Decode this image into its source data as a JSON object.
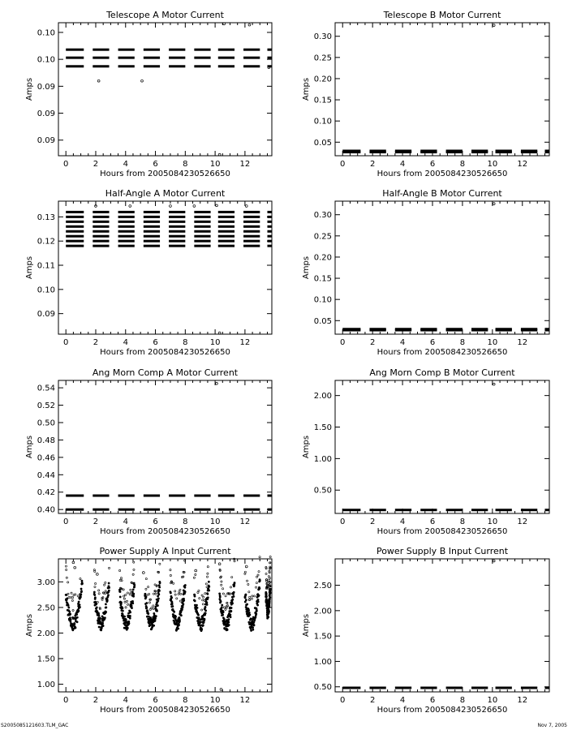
{
  "footer": {
    "left": "S2005085121603.TLM_GAC",
    "right": "Nov 7, 2005"
  },
  "chart_data": [
    {
      "type": "scatter",
      "title": "Telescope A Motor Current",
      "xlabel": "Hours from 2005084230526650",
      "ylabel": "Amps",
      "xlim": [
        -0.5,
        13.8
      ],
      "ylim": [
        0.0821,
        0.1068
      ],
      "xticks": [
        0,
        2,
        4,
        6,
        8,
        10,
        12
      ],
      "yticks": [
        0.085,
        0.09,
        0.095,
        0.1,
        0.105
      ],
      "ytick_labels": [
        "0.09",
        "0.09",
        "0.09",
        "0.10",
        "0.10"
      ],
      "pattern": "bands",
      "levels": [
        0.0987,
        0.1003,
        0.1018
      ],
      "outliers": [
        [
          2.2,
          0.096
        ],
        [
          5.1,
          0.096
        ],
        [
          10.3,
          0.0823
        ],
        [
          10.6,
          0.1066
        ],
        [
          12.3,
          0.1064
        ],
        [
          13.6,
          0.0985
        ]
      ]
    },
    {
      "type": "scatter",
      "title": "Telescope B Motor Current",
      "xlabel": "Hours from 2005084230526650",
      "ylabel": "Amps",
      "xlim": [
        -0.5,
        13.8
      ],
      "ylim": [
        0.018,
        0.332
      ],
      "xticks": [
        0,
        2,
        4,
        6,
        8,
        10,
        12
      ],
      "yticks": [
        0.05,
        0.1,
        0.15,
        0.2,
        0.25,
        0.3
      ],
      "ytick_labels": [
        "0.05",
        "0.10",
        "0.15",
        "0.20",
        "0.25",
        "0.30"
      ],
      "pattern": "bands",
      "levels": [
        0.0265,
        0.0295
      ],
      "outliers": [
        [
          10.1,
          0.326
        ]
      ]
    },
    {
      "type": "scatter",
      "title": "Half-Angle A Motor Current",
      "xlabel": "Hours from 2005084230526650",
      "ylabel": "Amps",
      "xlim": [
        -0.5,
        13.8
      ],
      "ylim": [
        0.0815,
        0.1365
      ],
      "xticks": [
        0,
        2,
        4,
        6,
        8,
        10,
        12
      ],
      "yticks": [
        0.09,
        0.1,
        0.11,
        0.12,
        0.13
      ],
      "ytick_labels": [
        "0.09",
        "0.10",
        "0.11",
        "0.12",
        "0.13"
      ],
      "pattern": "bands",
      "levels": [
        0.118,
        0.12,
        0.122,
        0.124,
        0.126,
        0.128,
        0.13,
        0.132
      ],
      "outliers": [
        [
          2.0,
          0.1345
        ],
        [
          4.3,
          0.1345
        ],
        [
          7.0,
          0.1345
        ],
        [
          8.6,
          0.1345
        ],
        [
          10.3,
          0.082
        ],
        [
          10.1,
          0.1347
        ],
        [
          12.1,
          0.1345
        ]
      ]
    },
    {
      "type": "scatter",
      "title": "Half-Angle B Motor Current",
      "xlabel": "Hours from 2005084230526650",
      "ylabel": "Amps",
      "xlim": [
        -0.5,
        13.8
      ],
      "ylim": [
        0.018,
        0.332
      ],
      "xticks": [
        0,
        2,
        4,
        6,
        8,
        10,
        12
      ],
      "yticks": [
        0.05,
        0.1,
        0.15,
        0.2,
        0.25,
        0.3
      ],
      "ytick_labels": [
        "0.05",
        "0.10",
        "0.15",
        "0.20",
        "0.25",
        "0.30"
      ],
      "pattern": "bands",
      "levels": [
        0.0275,
        0.03
      ],
      "outliers": [
        [
          10.1,
          0.326
        ]
      ]
    },
    {
      "type": "scatter",
      "title": "Ang Morn Comp A Motor Current",
      "xlabel": "Hours from 2005084230526650",
      "ylabel": "Amps",
      "xlim": [
        -0.5,
        13.8
      ],
      "ylim": [
        0.3955,
        0.5485
      ],
      "xticks": [
        0,
        2,
        4,
        6,
        8,
        10,
        12
      ],
      "yticks": [
        0.4,
        0.42,
        0.44,
        0.46,
        0.48,
        0.5,
        0.52,
        0.54
      ],
      "ytick_labels": [
        "0.40",
        "0.42",
        "0.44",
        "0.46",
        "0.48",
        "0.50",
        "0.52",
        "0.54"
      ],
      "pattern": "bands",
      "levels": [
        0.4,
        0.416
      ],
      "outliers": [
        [
          10.1,
          0.545
        ]
      ]
    },
    {
      "type": "scatter",
      "title": "Ang Morn Comp B Motor Current",
      "xlabel": "Hours from 2005084230526650",
      "ylabel": "Amps",
      "xlim": [
        -0.5,
        13.8
      ],
      "ylim": [
        0.13,
        2.24
      ],
      "xticks": [
        0,
        2,
        4,
        6,
        8,
        10,
        12
      ],
      "yticks": [
        0.5,
        1.0,
        1.5,
        2.0
      ],
      "ytick_labels": [
        "0.50",
        "1.00",
        "1.50",
        "2.00"
      ],
      "pattern": "bands",
      "levels": [
        0.185
      ],
      "outliers": [
        [
          10.1,
          2.18
        ]
      ]
    },
    {
      "type": "scatter",
      "title": "Power Supply A Input Current",
      "xlabel": "Hours from 2005084230526650",
      "ylabel": "Amps",
      "xlim": [
        -0.5,
        13.8
      ],
      "ylim": [
        0.85,
        3.45
      ],
      "xticks": [
        0,
        2,
        4,
        6,
        8,
        10,
        12
      ],
      "yticks": [
        1.0,
        1.5,
        2.0,
        2.5,
        3.0
      ],
      "ytick_labels": [
        "1.00",
        "1.50",
        "2.00",
        "2.50",
        "3.00"
      ],
      "pattern": "cycles",
      "cycles": [
        {
          "start": 0.0,
          "end": 1.1,
          "min": 2.15
        },
        {
          "start": 1.9,
          "end": 2.9,
          "min": 2.15
        },
        {
          "start": 3.6,
          "end": 4.6,
          "min": 2.15
        },
        {
          "start": 5.3,
          "end": 6.3,
          "min": 2.15
        },
        {
          "start": 7.0,
          "end": 8.0,
          "min": 2.15
        },
        {
          "start": 8.6,
          "end": 9.6,
          "min": 2.15
        },
        {
          "start": 10.3,
          "end": 11.3,
          "min": 2.15
        },
        {
          "start": 12.0,
          "end": 13.0,
          "min": 2.15
        },
        {
          "start": 13.4,
          "end": 13.7,
          "min": 2.4
        }
      ],
      "cycle_peak": 2.85,
      "outliers": [
        [
          0.5,
          3.38
        ],
        [
          0.6,
          3.28
        ],
        [
          2.1,
          3.15
        ],
        [
          5.2,
          3.18
        ],
        [
          8.7,
          3.22
        ],
        [
          10.3,
          3.35
        ],
        [
          10.4,
          0.9
        ],
        [
          12.1,
          3.3
        ]
      ]
    },
    {
      "type": "scatter",
      "title": "Power Supply B Input Current",
      "xlabel": "Hours from 2005084230526650",
      "ylabel": "Amps",
      "xlim": [
        -0.5,
        13.8
      ],
      "ylim": [
        0.4,
        3.02
      ],
      "xticks": [
        0,
        2,
        4,
        6,
        8,
        10,
        12
      ],
      "yticks": [
        0.5,
        1.0,
        1.5,
        2.0,
        2.5
      ],
      "ytick_labels": [
        "0.50",
        "1.00",
        "1.50",
        "2.00",
        "2.50"
      ],
      "pattern": "bands",
      "levels": [
        0.48
      ],
      "outliers": [
        [
          10.1,
          2.98
        ]
      ]
    }
  ]
}
